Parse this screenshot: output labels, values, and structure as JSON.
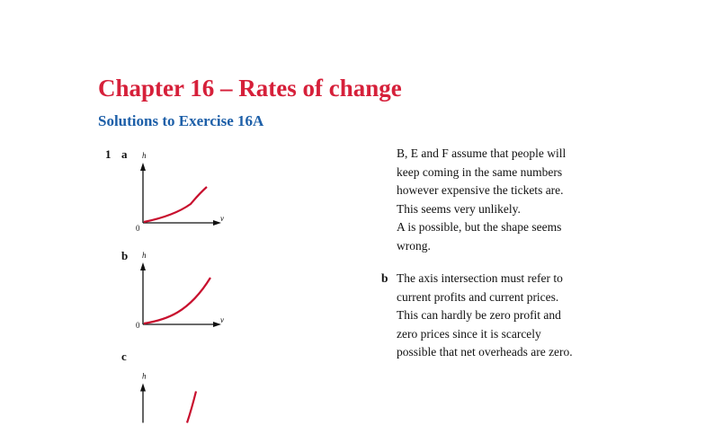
{
  "header": {
    "chapter_title": "Chapter 16 – Rates of change",
    "section_title": "Solutions to Exercise 16A"
  },
  "question": {
    "number": "1",
    "parts": [
      {
        "label": "a",
        "y_axis": "h",
        "x_axis": "v",
        "origin": "0"
      },
      {
        "label": "b",
        "y_axis": "h",
        "x_axis": "v",
        "origin": "0"
      },
      {
        "label": "c",
        "y_axis": "h"
      }
    ]
  },
  "answers": {
    "a_lines": [
      "B, E and F assume that people will",
      "keep coming in the same numbers",
      "however expensive the tickets are.",
      "This seems very unlikely.",
      "A is possible, but the shape seems",
      "wrong."
    ],
    "b_label": "b",
    "b_lines": [
      "The axis intersection must refer to",
      "current profits and current prices.",
      "This can hardly be zero profit and",
      "zero prices since it is scarcely",
      "possible that net overheads are zero."
    ]
  },
  "colors": {
    "chapter_title": "#d6203a",
    "section_title": "#1d5fa8",
    "curve": "#c8102e"
  }
}
